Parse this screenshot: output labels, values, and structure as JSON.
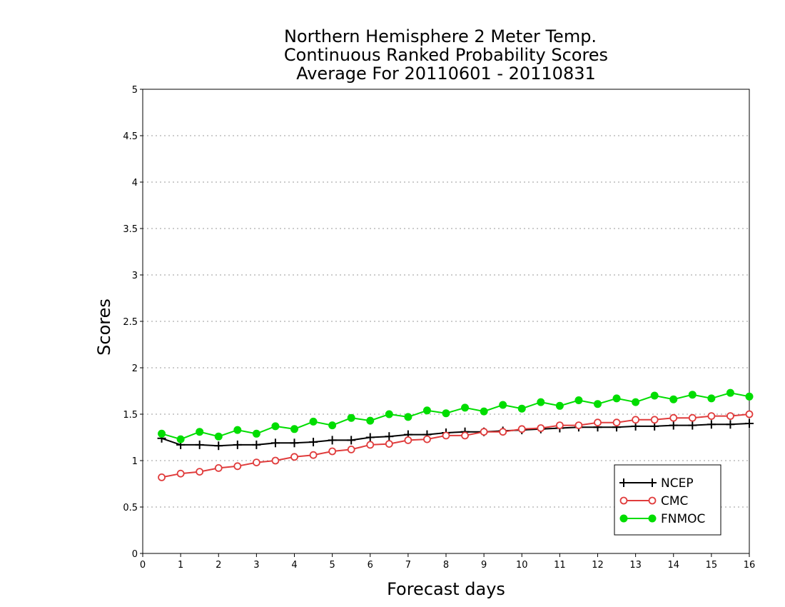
{
  "chart_data": {
    "type": "line",
    "title": [
      "Northern Hemisphere 2 Meter Temp.",
      "Continuous Ranked Probability Scores",
      "Average For 20110601 - 20110831"
    ],
    "xlabel": "Forecast days",
    "ylabel": "Scores",
    "xlim": [
      0,
      16
    ],
    "ylim": [
      0,
      5
    ],
    "xticks": [
      "0",
      "1",
      "2",
      "3",
      "4",
      "5",
      "6",
      "7",
      "8",
      "9",
      "10",
      "11",
      "12",
      "13",
      "14",
      "15",
      "16"
    ],
    "yticks": [
      "0",
      "0.5",
      "1",
      "1.5",
      "2",
      "2.5",
      "3",
      "3.5",
      "4",
      "4.5",
      "5"
    ],
    "grid": true,
    "legend_position": "bottom-right",
    "x": [
      0.5,
      1,
      1.5,
      2,
      2.5,
      3,
      3.5,
      4,
      4.5,
      5,
      5.5,
      6,
      6.5,
      7,
      7.5,
      8,
      8.5,
      9,
      9.5,
      10,
      10.5,
      11,
      11.5,
      12,
      12.5,
      13,
      13.5,
      14,
      14.5,
      15,
      15.5,
      16
    ],
    "series": [
      {
        "name": "NCEP",
        "color": "#000000",
        "marker": "plus",
        "values": [
          1.24,
          1.17,
          1.17,
          1.16,
          1.17,
          1.17,
          1.19,
          1.19,
          1.2,
          1.22,
          1.22,
          1.25,
          1.26,
          1.28,
          1.28,
          1.3,
          1.31,
          1.31,
          1.32,
          1.33,
          1.34,
          1.35,
          1.36,
          1.36,
          1.36,
          1.37,
          1.37,
          1.38,
          1.38,
          1.39,
          1.39,
          1.4
        ]
      },
      {
        "name": "CMC",
        "color": "#e03c3c",
        "marker": "open-circle",
        "values": [
          0.82,
          0.86,
          0.88,
          0.92,
          0.94,
          0.98,
          1.0,
          1.04,
          1.06,
          1.1,
          1.12,
          1.17,
          1.18,
          1.22,
          1.23,
          1.27,
          1.27,
          1.31,
          1.31,
          1.34,
          1.35,
          1.38,
          1.38,
          1.41,
          1.41,
          1.44,
          1.44,
          1.46,
          1.46,
          1.48,
          1.48,
          1.5
        ]
      },
      {
        "name": "FNMOC",
        "color": "#00dd00",
        "marker": "filled-circle",
        "values": [
          1.29,
          1.23,
          1.31,
          1.26,
          1.33,
          1.29,
          1.37,
          1.34,
          1.42,
          1.38,
          1.46,
          1.43,
          1.5,
          1.47,
          1.54,
          1.51,
          1.57,
          1.53,
          1.6,
          1.56,
          1.63,
          1.59,
          1.65,
          1.61,
          1.67,
          1.63,
          1.7,
          1.66,
          1.71,
          1.67,
          1.73,
          1.69
        ]
      }
    ]
  }
}
